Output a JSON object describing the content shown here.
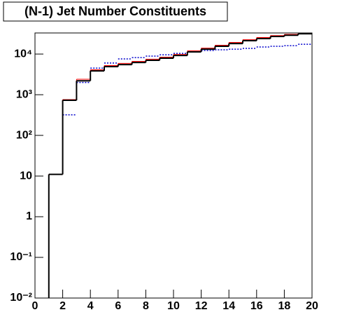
{
  "chart_data": {
    "type": "histogram",
    "title": "(N-1) Jet Number Constituents",
    "bins": [
      0,
      1,
      2,
      3,
      4,
      5,
      6,
      7,
      8,
      9,
      10,
      11,
      12,
      13,
      14,
      15,
      16,
      17,
      18,
      19,
      20
    ],
    "xlim": [
      0,
      20
    ],
    "xticks": [
      0,
      2,
      4,
      6,
      8,
      10,
      12,
      14,
      16,
      18,
      20
    ],
    "ylim": [
      0.01,
      33000
    ],
    "log_y": true,
    "yticks": [
      {
        "value": 0.01,
        "label": "10⁻²"
      },
      {
        "value": 0.1,
        "label": "10⁻¹"
      },
      1,
      10,
      {
        "value": 100,
        "label": "10²"
      },
      {
        "value": 1000,
        "label": "10³"
      },
      {
        "value": 10000,
        "label": "10⁴"
      }
    ],
    "series": [
      {
        "color": "#0000cc",
        "style": "dotted",
        "values": [
          null,
          null,
          320,
          2000,
          4500,
          6000,
          7600,
          8200,
          8900,
          9600,
          10400,
          11300,
          12200,
          12700,
          13200,
          13800,
          14900,
          15500,
          16100,
          17400
        ]
      },
      {
        "color": "#ff0000",
        "style": "solid",
        "values": [
          null,
          11,
          760,
          2400,
          4100,
          5200,
          5900,
          6600,
          7500,
          8400,
          9800,
          12000,
          14000,
          16500,
          19300,
          22500,
          25500,
          28500,
          30500,
          32000
        ]
      },
      {
        "color": "#000000",
        "style": "thick",
        "values": [
          null,
          11,
          730,
          2200,
          3850,
          4900,
          5500,
          6200,
          7000,
          7900,
          9200,
          11300,
          13200,
          15500,
          18100,
          21300,
          24000,
          27000,
          29000,
          31600
        ]
      }
    ]
  }
}
